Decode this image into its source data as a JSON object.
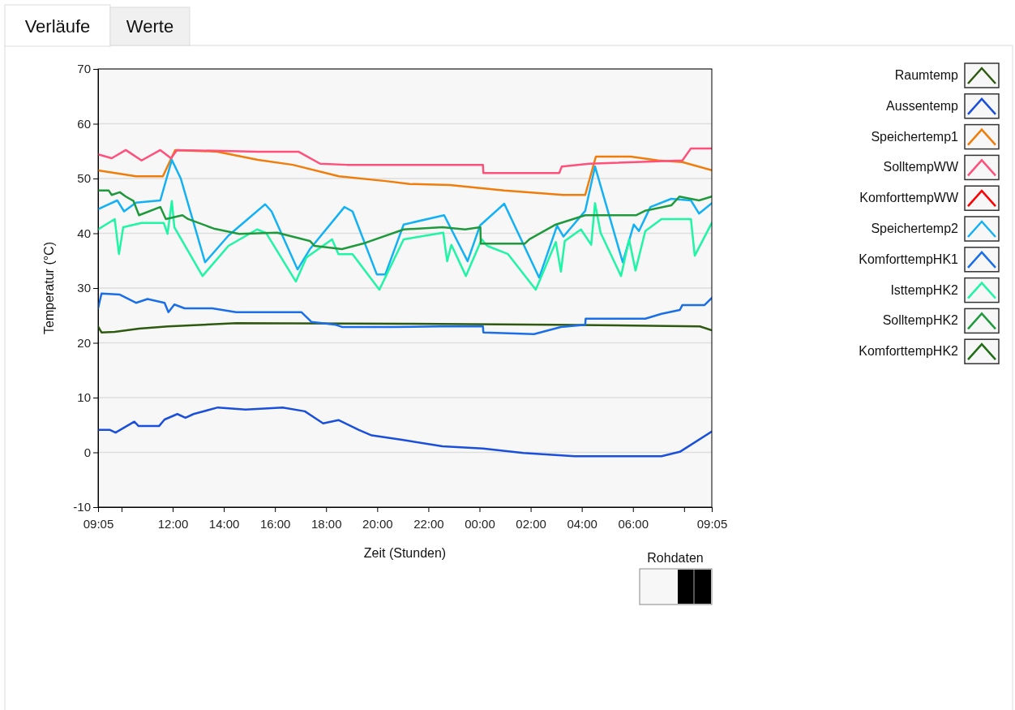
{
  "chart_data": {
    "type": "line",
    "xlabel": "Zeit (Stunden)",
    "ylabel": "Temperatur (°C)",
    "xlim": [
      "2000-01-01T09:05",
      "2000-01-02T09:05"
    ],
    "ylim": [
      -10,
      70
    ],
    "xticks": [
      {
        "value": "2000-01-01T09:05",
        "label": "09:05"
      },
      {
        "value": "2000-01-01T10:00",
        "label": null
      },
      {
        "value": "2000-01-01T12:00",
        "label": "12:00"
      },
      {
        "value": "2000-01-01T14:00",
        "label": "14:00"
      },
      {
        "value": "2000-01-01T16:00",
        "label": "16:00"
      },
      {
        "value": "2000-01-01T18:00",
        "label": "18:00"
      },
      {
        "value": "2000-01-01T20:00",
        "label": "20:00"
      },
      {
        "value": "2000-01-01T22:00",
        "label": "22:00"
      },
      {
        "value": "2000-01-02T00:00",
        "label": "00:00"
      },
      {
        "value": "2000-01-02T02:00",
        "label": "02:00"
      },
      {
        "value": "2000-01-02T04:00",
        "label": "04:00"
      },
      {
        "value": "2000-01-02T06:00",
        "label": "06:00"
      },
      {
        "value": "2000-01-02T08:00",
        "label": null
      },
      {
        "value": "2000-01-02T09:05",
        "label": "09:05"
      }
    ],
    "yticks": [
      -10,
      0,
      10,
      20,
      30,
      40,
      50,
      60,
      70
    ],
    "grid": "y",
    "legend": "right",
    "annotations": [
      "Verläufe",
      "Werte",
      "Rohdaten"
    ],
    "series": [
      {
        "name": "Raumtemp",
        "color": "#2e5a10",
        "x": [
          "2000-01-01T09:05",
          "2000-01-01T09:13",
          "2000-01-01T09:44",
          "2000-01-01T10:41",
          "2000-01-01T11:49",
          "2000-01-01T14:29",
          "2000-01-01T21:09",
          "2000-01-02T02:59",
          "2000-01-02T08:37",
          "2000-01-02T09:05"
        ],
        "values": [
          23,
          21.9,
          22,
          22.6,
          23,
          23.6,
          23.5,
          23.3,
          23,
          22.3
        ]
      },
      {
        "name": "Aussentemp",
        "color": "#1a4fdb",
        "x": [
          "2000-01-01T09:05",
          "2000-01-01T09:33",
          "2000-01-01T09:46",
          "2000-01-01T10:30",
          "2000-01-01T10:40",
          "2000-01-01T11:28",
          "2000-01-01T11:41",
          "2000-01-01T12:11",
          "2000-01-01T12:30",
          "2000-01-01T12:49",
          "2000-01-01T13:46",
          "2000-01-01T14:51",
          "2000-01-01T16:18",
          "2000-01-01T17:10",
          "2000-01-01T17:53",
          "2000-01-01T18:29",
          "2000-01-01T19:17",
          "2000-01-01T19:47",
          "2000-01-01T20:58",
          "2000-01-01T22:33",
          "2000-01-02T00:08",
          "2000-01-02T01:43",
          "2000-01-02T03:43",
          "2000-01-02T07:07",
          "2000-01-02T07:50",
          "2000-01-02T09:05"
        ],
        "values": [
          4.1,
          4.1,
          3.6,
          5.6,
          4.8,
          4.8,
          6,
          7,
          6.3,
          7,
          8.2,
          7.8,
          8.2,
          7.5,
          5.3,
          5.9,
          4.1,
          3.1,
          2.3,
          1.1,
          0.7,
          -0.1,
          -0.7,
          -0.7,
          0.1,
          3.8
        ]
      },
      {
        "name": "Speichertemp1",
        "color": "#f07d0a",
        "x": [
          "2000-01-01T09:05",
          "2000-01-01T10:34",
          "2000-01-01T11:37",
          "2000-01-01T12:06",
          "2000-01-01T13:45",
          "2000-01-01T15:20",
          "2000-01-01T16:42",
          "2000-01-01T18:30",
          "2000-01-01T20:24",
          "2000-01-01T21:16",
          "2000-01-01T22:50",
          "2000-01-02T00:58",
          "2000-01-02T03:17",
          "2000-01-02T04:08",
          "2000-01-02T04:33",
          "2000-01-02T05:55",
          "2000-01-02T06:59",
          "2000-01-02T07:56",
          "2000-01-02T09:05"
        ],
        "values": [
          51.5,
          50.4,
          50.4,
          55.2,
          54.9,
          53.4,
          52.5,
          50.4,
          49.5,
          49,
          48.8,
          47.8,
          47,
          47,
          54,
          54,
          53.3,
          53,
          51.5
        ]
      },
      {
        "name": "SolltempWW",
        "color": "#ff4f7b",
        "x": [
          "2000-01-01T09:05",
          "2000-01-01T09:37",
          "2000-01-01T10:10",
          "2000-01-01T10:47",
          "2000-01-01T11:31",
          "2000-01-01T11:56",
          "2000-01-01T12:10",
          "2000-01-01T15:20",
          "2000-01-01T16:55",
          "2000-01-01T17:46",
          "2000-01-01T18:49",
          "2000-01-02T00:08",
          "2000-01-02T00:09",
          "2000-01-02T03:07",
          "2000-01-02T03:13",
          "2000-01-02T04:18",
          "2000-01-02T07:56",
          "2000-01-02T08:16",
          "2000-01-02T09:05"
        ],
        "values": [
          54.4,
          53.7,
          55.2,
          53.3,
          55.2,
          53.7,
          55.2,
          54.9,
          54.9,
          52.7,
          52.5,
          52.5,
          51,
          51,
          52.2,
          52.7,
          53.3,
          55.5,
          55.5
        ]
      },
      {
        "name": "KomforttempWW",
        "color": "#ff0000",
        "values": [
          null
        ]
      },
      {
        "name": "Speichertemp2",
        "color": "#12b0f5",
        "x": [
          "2000-01-01T09:05",
          "2000-01-01T09:50",
          "2000-01-01T10:06",
          "2000-01-01T10:34",
          "2000-01-01T11:31",
          "2000-01-01T11:58",
          "2000-01-01T12:19",
          "2000-01-01T13:16",
          "2000-01-01T14:11",
          "2000-01-01T15:37",
          "2000-01-01T15:52",
          "2000-01-01T16:53",
          "2000-01-01T17:22",
          "2000-01-01T18:43",
          "2000-01-01T19:02",
          "2000-01-01T19:59",
          "2000-01-01T20:19",
          "2000-01-01T21:02",
          "2000-01-01T22:37",
          "2000-01-01T23:32",
          "2000-01-02T00:01",
          "2000-01-02T00:58",
          "2000-01-02T02:20",
          "2000-01-02T03:02",
          "2000-01-02T03:17",
          "2000-01-02T04:08",
          "2000-01-02T04:31",
          "2000-01-02T05:36",
          "2000-01-02T06:02",
          "2000-01-02T06:14",
          "2000-01-02T06:41",
          "2000-01-02T07:30",
          "2000-01-02T08:16",
          "2000-01-02T08:35",
          "2000-01-02T09:05"
        ],
        "values": [
          44.4,
          46,
          44,
          45.6,
          46,
          53.4,
          50,
          34.7,
          39.6,
          45.3,
          44,
          33.4,
          37.1,
          44.8,
          44,
          32.5,
          32.5,
          41.6,
          43.3,
          34.9,
          41.4,
          45.4,
          31.9,
          41.4,
          39.4,
          44.1,
          52.2,
          34.7,
          41.6,
          40.4,
          44.8,
          46.3,
          46,
          43.6,
          45.5
        ]
      },
      {
        "name": "KomforttempHK1",
        "color": "#1a6ee8",
        "x": [
          "2000-01-01T09:05",
          "2000-01-01T09:13",
          "2000-01-01T09:56",
          "2000-01-01T10:34",
          "2000-01-01T11:01",
          "2000-01-01T11:41",
          "2000-01-01T11:50",
          "2000-01-01T12:04",
          "2000-01-01T12:28",
          "2000-01-01T13:33",
          "2000-01-01T14:29",
          "2000-01-01T17:02",
          "2000-01-01T17:26",
          "2000-01-01T18:23",
          "2000-01-01T18:37",
          "2000-01-01T20:37",
          "2000-01-01T22:28",
          "2000-01-02T00:08",
          "2000-01-02T00:09",
          "2000-01-02T02:08",
          "2000-01-02T03:11",
          "2000-01-02T04:08",
          "2000-01-02T04:09",
          "2000-01-02T06:29",
          "2000-01-02T07:07",
          "2000-01-02T07:50",
          "2000-01-02T07:56",
          "2000-01-02T08:48",
          "2000-01-02T09:05"
        ],
        "values": [
          26.3,
          29,
          28.8,
          27.3,
          28,
          27.3,
          25.6,
          27,
          26.3,
          26.3,
          25.6,
          25.6,
          23.8,
          23.3,
          22.9,
          22.9,
          23,
          23,
          21.9,
          21.6,
          22.9,
          23.3,
          24.4,
          24.4,
          25.3,
          26,
          26.9,
          26.9,
          28.2
        ]
      },
      {
        "name": "IsttempHK2",
        "color": "#1ef5a5",
        "x": [
          "2000-01-01T09:05",
          "2000-01-01T09:44",
          "2000-01-01T09:54",
          "2000-01-01T10:04",
          "2000-01-01T10:47",
          "2000-01-01T11:39",
          "2000-01-01T11:48",
          "2000-01-01T11:58",
          "2000-01-01T12:04",
          "2000-01-01T13:10",
          "2000-01-01T14:11",
          "2000-01-01T15:18",
          "2000-01-01T15:39",
          "2000-01-01T16:49",
          "2000-01-01T17:14",
          "2000-01-01T18:14",
          "2000-01-01T18:29",
          "2000-01-01T19:02",
          "2000-01-01T20:05",
          "2000-01-01T21:02",
          "2000-01-01T22:35",
          "2000-01-01T22:44",
          "2000-01-01T22:54",
          "2000-01-01T23:28",
          "2000-01-02T00:05",
          "2000-01-02T00:18",
          "2000-01-02T01:07",
          "2000-01-02T02:12",
          "2000-01-02T02:59",
          "2000-01-02T03:11",
          "2000-01-02T03:20",
          "2000-01-02T03:58",
          "2000-01-02T04:22",
          "2000-01-02T04:31",
          "2000-01-02T04:44",
          "2000-01-02T05:32",
          "2000-01-02T05:51",
          "2000-01-02T06:06",
          "2000-01-02T06:29",
          "2000-01-02T07:07",
          "2000-01-02T08:16",
          "2000-01-02T08:25",
          "2000-01-02T09:05"
        ],
        "values": [
          40.7,
          42.6,
          36.2,
          41.1,
          41.9,
          41.9,
          39.9,
          45.9,
          41.1,
          32.2,
          37.7,
          40.7,
          40.1,
          31.2,
          35.6,
          38.9,
          36.2,
          36.2,
          29.7,
          38.9,
          40.1,
          34.9,
          37.9,
          32.2,
          38.9,
          37.7,
          36.2,
          29.7,
          38.4,
          33,
          38.6,
          40.7,
          37.9,
          45.5,
          40.1,
          32.2,
          38.9,
          33.2,
          40.4,
          42.6,
          42.6,
          35.9,
          41.9
        ]
      },
      {
        "name": "SolltempHK2",
        "color": "#1e9a3c",
        "x": [
          "2000-01-01T09:05",
          "2000-01-01T09:30",
          "2000-01-01T09:37",
          "2000-01-01T09:56",
          "2000-01-01T10:10",
          "2000-01-01T10:28",
          "2000-01-01T10:41",
          "2000-01-01T11:31",
          "2000-01-01T11:44",
          "2000-01-01T12:23",
          "2000-01-01T12:36",
          "2000-01-01T13:39",
          "2000-01-01T14:36",
          "2000-01-01T16:05",
          "2000-01-01T17:22",
          "2000-01-01T17:33",
          "2000-01-01T18:37",
          "2000-01-01T19:26",
          "2000-01-01T21:02",
          "2000-01-01T22:33",
          "2000-01-01T23:26",
          "2000-01-02T00:02",
          "2000-01-02T00:03",
          "2000-01-02T01:46",
          "2000-01-02T01:57",
          "2000-01-02T02:59",
          "2000-01-02T04:08",
          "2000-01-02T06:08",
          "2000-01-02T06:28",
          "2000-01-02T07:30",
          "2000-01-02T07:49",
          "2000-01-02T08:35",
          "2000-01-02T09:05"
        ],
        "values": [
          47.8,
          47.8,
          47,
          47.5,
          46.7,
          45.9,
          43.3,
          44.8,
          42.6,
          43.3,
          42.6,
          40.8,
          39.9,
          40.1,
          38.6,
          37.7,
          37.1,
          38.1,
          40.7,
          41.1,
          40.7,
          41.1,
          38.1,
          38.1,
          38.9,
          41.6,
          43.3,
          43.3,
          44.1,
          45.1,
          46.7,
          46,
          46.7
        ]
      },
      {
        "name": "KomforttempHK2",
        "color": "#1f6e14",
        "values": [
          null
        ]
      }
    ]
  }
}
